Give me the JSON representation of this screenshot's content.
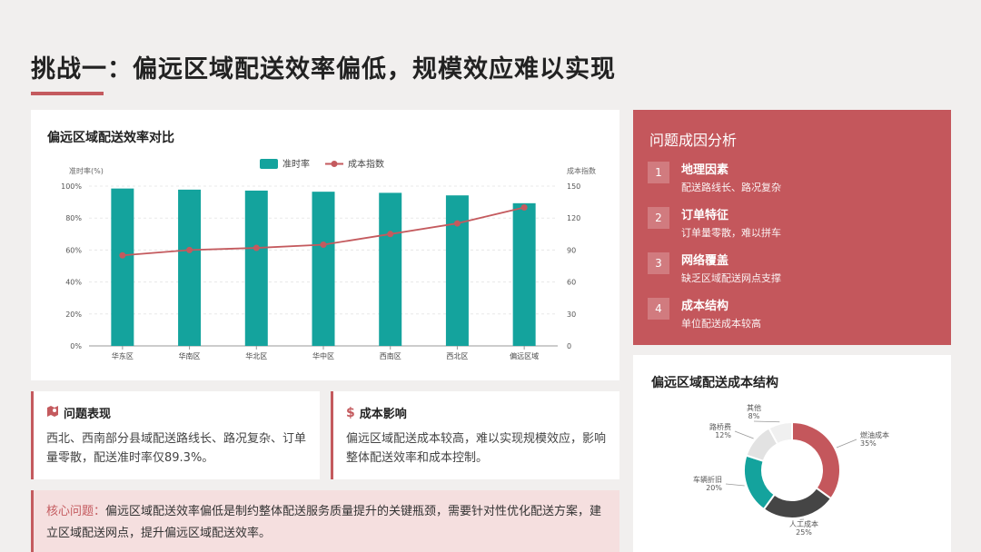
{
  "page": {
    "title": "挑战一：偏远区域配送效率偏低，规模效应难以实现"
  },
  "bar_chart_card": {
    "title": "偏远区域配送效率对比"
  },
  "chart_data": [
    {
      "type": "bar+line",
      "title": "偏远区域配送效率对比",
      "categories": [
        "华东区",
        "华南区",
        "华北区",
        "华中区",
        "西南区",
        "西北区",
        "偏远区域"
      ],
      "series": [
        {
          "name": "准时率",
          "type": "bar",
          "axis": "left",
          "color": "#14a39d",
          "values": [
            98.5,
            97.8,
            97.2,
            96.5,
            95.8,
            94.2,
            89.3
          ]
        },
        {
          "name": "成本指数",
          "type": "line",
          "axis": "right",
          "color": "#c45a5e",
          "values": [
            85,
            90,
            92,
            95,
            105,
            115,
            130
          ]
        }
      ],
      "y_left": {
        "label": "准时率(%)",
        "range": [
          0,
          100
        ],
        "ticks": [
          "0%",
          "20%",
          "40%",
          "60%",
          "80%",
          "100%"
        ]
      },
      "y_right": {
        "label": "成本指数",
        "range": [
          0,
          150
        ],
        "ticks": [
          "0",
          "30",
          "60",
          "90",
          "120",
          "150"
        ]
      },
      "legend": "top-center",
      "grid": true
    },
    {
      "type": "pie",
      "title": "偏远区域配送成本结构",
      "slices": [
        {
          "name": "燃油成本",
          "value": 35,
          "label": "35%",
          "color": "#c4575c"
        },
        {
          "name": "人工成本",
          "value": 25,
          "label": "25%",
          "color": "#454545"
        },
        {
          "name": "车辆折旧",
          "value": 20,
          "label": "20%",
          "color": "#14a39d"
        },
        {
          "name": "路桥费",
          "value": 12,
          "label": "12%",
          "color": "#e2e2e2"
        },
        {
          "name": "其他",
          "value": 8,
          "label": "8%",
          "color": "#f0f0f0"
        }
      ]
    }
  ],
  "analysis": {
    "title": "问题成因分析",
    "items": [
      {
        "num": "1",
        "title": "地理因素",
        "desc": "配送路线长、路况复杂"
      },
      {
        "num": "2",
        "title": "订单特征",
        "desc": "订单量零散，难以拼车"
      },
      {
        "num": "3",
        "title": "网络覆盖",
        "desc": "缺乏区域配送网点支撑"
      },
      {
        "num": "4",
        "title": "成本结构",
        "desc": "单位配送成本较高"
      }
    ]
  },
  "pie_card": {
    "title": "偏远区域配送成本结构"
  },
  "problem": {
    "icon": "map-pin-icon",
    "title": "问题表现",
    "text": "西北、西南部分县域配送路线长、路况复杂、订单量零散，配送准时率仅89.3%。"
  },
  "impact": {
    "icon": "dollar-icon",
    "title": "成本影响",
    "text": "偏远区域配送成本较高，难以实现规模效应，影响整体配送效率和成本控制。"
  },
  "core": {
    "label": "核心问题：",
    "text": "偏远区域配送效率偏低是制约整体配送服务质量提升的关键瓶颈，需要针对性优化配送方案，建立区域配送网点，提升偏远区域配送效率。"
  }
}
